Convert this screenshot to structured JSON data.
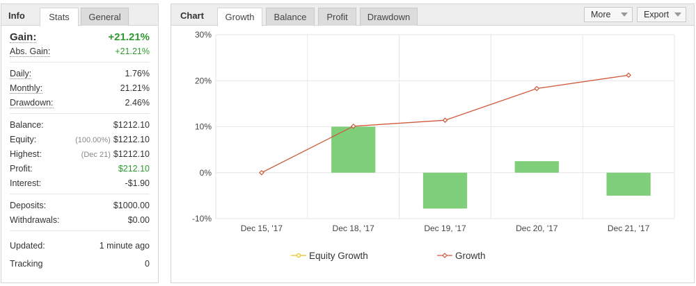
{
  "info": {
    "title": "Info",
    "tabs": [
      "Stats",
      "General"
    ],
    "gain": {
      "label": "Gain:",
      "value": "+21.21%"
    },
    "abs_gain": {
      "label": "Abs. Gain:",
      "value": "+21.21%"
    },
    "daily": {
      "label": "Daily:",
      "value": "1.76%"
    },
    "monthly": {
      "label": "Monthly:",
      "value": "21.21%"
    },
    "drawdown": {
      "label": "Drawdown:",
      "value": "2.46%"
    },
    "balance": {
      "label": "Balance:",
      "value": "$1212.10"
    },
    "equity": {
      "label": "Equity:",
      "note": "(100.00%)",
      "value": "$1212.10"
    },
    "highest": {
      "label": "Highest:",
      "note": "(Dec 21)",
      "value": "$1212.10"
    },
    "profit": {
      "label": "Profit:",
      "value": "$212.10"
    },
    "interest": {
      "label": "Interest:",
      "value": "-$1.90"
    },
    "deposits": {
      "label": "Deposits:",
      "value": "$1000.00"
    },
    "withdrawals": {
      "label": "Withdrawals:",
      "value": "$0.00"
    },
    "updated": {
      "label": "Updated:",
      "value": "1 minute ago"
    },
    "tracking": {
      "label": "Tracking",
      "value": "0"
    }
  },
  "chart_panel": {
    "title": "Chart",
    "tabs": [
      "Growth",
      "Balance",
      "Profit",
      "Drawdown"
    ],
    "more_label": "More",
    "export_label": "Export"
  },
  "colors": {
    "bar": "#7fcf7a",
    "growth_line": "#d0583a",
    "equity_line": "#e8c21a",
    "positive": "#2e9a2e"
  },
  "chart_data": {
    "type": "bar",
    "categories": [
      "Dec 15, '17",
      "Dec 18, '17",
      "Dec 19, '17",
      "Dec 20, '17",
      "Dec 21, '17"
    ],
    "ylim": [
      -10,
      30
    ],
    "yticks": [
      -10,
      0,
      10,
      20,
      30
    ],
    "ytick_labels": [
      "-10%",
      "0%",
      "10%",
      "20%",
      "30%"
    ],
    "series": [
      {
        "name": "Equity Growth",
        "type": "bar",
        "values": [
          0,
          10.0,
          -7.8,
          2.5,
          -5.0
        ]
      },
      {
        "name": "Growth",
        "type": "line",
        "values": [
          0,
          10.1,
          11.4,
          18.3,
          21.2
        ]
      }
    ],
    "legend": [
      "Equity Growth",
      "Growth"
    ],
    "legend_position": "bottom"
  }
}
